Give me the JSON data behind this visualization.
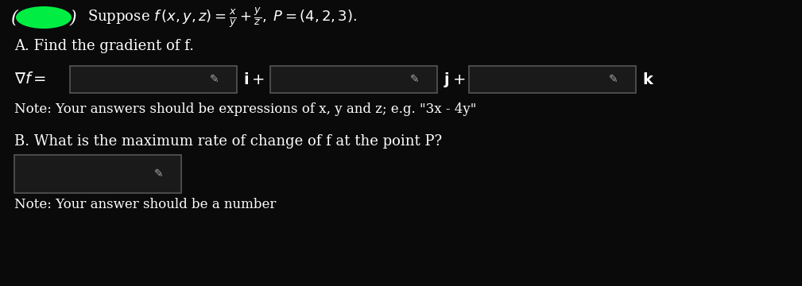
{
  "bg_color": "#0a0a0a",
  "text_color": "#ffffff",
  "box_color": "#1a1a1a",
  "box_border_color": "#555555",
  "title_line": "Suppose f (x, y, z) = ½ + ½, P = (4, 2, 3).",
  "title_formula": "Suppose $f\\,(x,y,z) = \\frac{x}{y} + \\frac{y}{z},\\; P = (4,2,3).$",
  "part_a": "A. Find the gradient of f.",
  "grad_label": "$\\nabla f =$",
  "i_label": "$\\mathbf{i}+$",
  "j_label": "$\\mathbf{j}+$",
  "k_label": "$\\mathbf{k}$",
  "note_a": "Note: Your answers should be expressions of x, y and z; e.g. \"3x - 4y\"",
  "part_b": "B. What is the maximum rate of change of f at the point P?",
  "note_b": "Note: Your answer should be a number",
  "pencil_color": "#aaaaaa",
  "green_blob_color": "#00ee44"
}
